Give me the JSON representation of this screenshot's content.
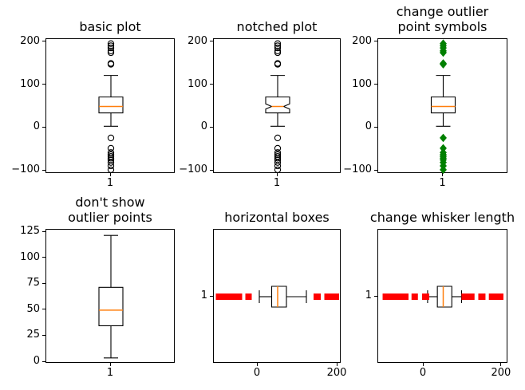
{
  "figure": {
    "background": "#ffffff"
  },
  "colors": {
    "spine": "#000000",
    "box_line": "#000000",
    "median": "#ff7f0e",
    "outlier_black": "#000000",
    "outlier_green": "#008000",
    "outlier_red": "#ff0000",
    "text": "#000000"
  },
  "chart_data": [
    {
      "type": "boxplot",
      "title": "basic plot",
      "orientation": "vertical",
      "notched": false,
      "show_fliers": true,
      "flier_marker": "circle",
      "flier_color": "#000000",
      "category_label": "1",
      "value_range": [
        -106.5,
        206.5
      ],
      "value_ticks": [
        {
          "value": 200,
          "label": "200"
        },
        {
          "value": 100,
          "label": "100"
        },
        {
          "value": 0,
          "label": "0"
        },
        {
          "value": -100,
          "label": "−100"
        }
      ],
      "box": {
        "q1": 35,
        "median": 50,
        "q3": 72,
        "whisker_low": 4,
        "whisker_high": 122
      },
      "fliers_high": [
        148,
        150,
        175,
        179,
        186,
        191,
        196
      ],
      "fliers_low": [
        -23,
        -47,
        -57,
        -62,
        -66,
        -70,
        -74,
        -80,
        -88,
        -97
      ]
    },
    {
      "type": "boxplot",
      "title": "notched plot",
      "orientation": "vertical",
      "notched": true,
      "show_fliers": true,
      "flier_marker": "circle",
      "flier_color": "#000000",
      "category_label": "1",
      "value_range": [
        -106.5,
        206.5
      ],
      "value_ticks": [
        {
          "value": 200,
          "label": "200"
        },
        {
          "value": 100,
          "label": "100"
        },
        {
          "value": 0,
          "label": "0"
        },
        {
          "value": -100,
          "label": "−100"
        }
      ],
      "box": {
        "q1": 35,
        "median": 50,
        "q3": 72,
        "whisker_low": 4,
        "whisker_high": 122,
        "notch_low": 44,
        "notch_high": 56
      },
      "fliers_high": [
        148,
        150,
        175,
        179,
        186,
        191,
        196
      ],
      "fliers_low": [
        -23,
        -47,
        -57,
        -62,
        -66,
        -70,
        -74,
        -80,
        -88,
        -97
      ]
    },
    {
      "type": "boxplot",
      "title": "change outlier\npoint symbols",
      "orientation": "vertical",
      "notched": false,
      "show_fliers": true,
      "flier_marker": "diamond",
      "flier_color": "#008000",
      "category_label": "1",
      "value_range": [
        -106.5,
        206.5
      ],
      "value_ticks": [
        {
          "value": 200,
          "label": "200"
        },
        {
          "value": 100,
          "label": "100"
        },
        {
          "value": 0,
          "label": "0"
        },
        {
          "value": -100,
          "label": "−100"
        }
      ],
      "box": {
        "q1": 35,
        "median": 50,
        "q3": 72,
        "whisker_low": 4,
        "whisker_high": 122
      },
      "fliers_high": [
        148,
        150,
        175,
        179,
        186,
        191,
        196
      ],
      "fliers_low": [
        -23,
        -47,
        -57,
        -62,
        -66,
        -70,
        -74,
        -80,
        -88,
        -97
      ]
    },
    {
      "type": "boxplot",
      "title": "don't show\noutlier points",
      "orientation": "vertical",
      "notched": false,
      "show_fliers": false,
      "flier_marker": "none",
      "flier_color": "#000000",
      "category_label": "1",
      "value_range": [
        -1.5,
        127.5
      ],
      "value_ticks": [
        {
          "value": 125,
          "label": "125"
        },
        {
          "value": 100,
          "label": "100"
        },
        {
          "value": 75,
          "label": "75"
        },
        {
          "value": 50,
          "label": "50"
        },
        {
          "value": 25,
          "label": "25"
        },
        {
          "value": 0,
          "label": "0"
        }
      ],
      "box": {
        "q1": 35,
        "median": 50,
        "q3": 72,
        "whisker_low": 4,
        "whisker_high": 122
      },
      "fliers_high": [],
      "fliers_low": []
    },
    {
      "type": "boxplot",
      "title": "horizontal boxes",
      "orientation": "horizontal",
      "notched": false,
      "show_fliers": true,
      "flier_marker": "square",
      "flier_color": "#ff0000",
      "category_label": "1",
      "value_range": [
        -110,
        210
      ],
      "value_ticks": [
        {
          "value": 0,
          "label": "0"
        },
        {
          "value": 200,
          "label": "200"
        }
      ],
      "box": {
        "q1": 35,
        "median": 50,
        "q3": 72,
        "whisker_low": 4,
        "whisker_high": 122
      },
      "fliers_high": [
        148,
        150,
        175,
        179,
        186,
        191,
        196
      ],
      "fliers_low": [
        -23,
        -47,
        -57,
        -62,
        -66,
        -70,
        -74,
        -80,
        -88,
        -97
      ]
    },
    {
      "type": "boxplot",
      "title": "change whisker length",
      "orientation": "horizontal",
      "notched": false,
      "show_fliers": true,
      "flier_marker": "square",
      "flier_color": "#ff0000",
      "category_label": "1",
      "value_range": [
        -116.5,
        216.5
      ],
      "value_ticks": [
        {
          "value": 0,
          "label": "0"
        },
        {
          "value": 200,
          "label": "200"
        }
      ],
      "box": {
        "q1": 35,
        "median": 50,
        "q3": 72,
        "whisker_low": 10,
        "whisker_high": 97
      },
      "fliers_high": [
        105,
        112,
        122,
        148,
        150,
        175,
        179,
        186,
        191,
        196
      ],
      "fliers_low": [
        4,
        6,
        -23,
        -47,
        -57,
        -62,
        -66,
        -70,
        -74,
        -80,
        -88,
        -97
      ]
    }
  ]
}
